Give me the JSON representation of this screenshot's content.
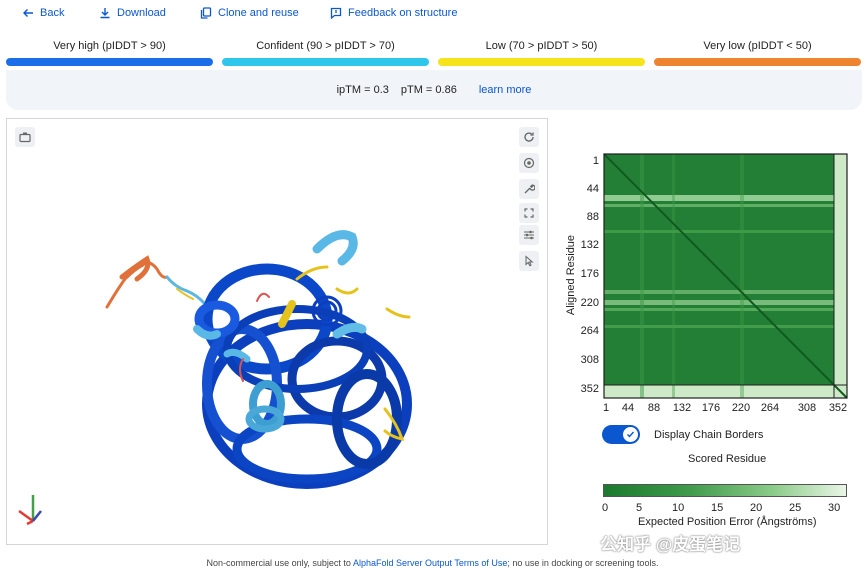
{
  "toolbar": {
    "back_label": "Back",
    "download_label": "Download",
    "clone_label": "Clone and reuse",
    "feedback_label": "Feedback on structure"
  },
  "legend": [
    {
      "label": "Very high (pIDDT > 90)",
      "color": "#1a6fe8"
    },
    {
      "label": "Confident (90 > pIDDT > 70)",
      "color": "#2fc6ec"
    },
    {
      "label": "Low (70 > pIDDT > 50)",
      "color": "#f5e41b"
    },
    {
      "label": "Very low (pIDDT < 50)",
      "color": "#ef8430"
    }
  ],
  "metrics": {
    "iptm": "ipTM = 0.3",
    "ptm": "pTM = 0.86",
    "learn_more": "learn more"
  },
  "pae": {
    "y_axis_label": "Aligned Residue",
    "x_axis_label": "Scored Residue",
    "ticks": [
      "1",
      "44",
      "88",
      "132",
      "176",
      "220",
      "264",
      "308",
      "352"
    ],
    "toggle_label": "Display Chain Borders",
    "toggle_on": true,
    "colorbar_label": "Expected Position Error (Ångströms)",
    "colorbar_ticks": [
      "0",
      "5",
      "10",
      "15",
      "20",
      "25",
      "30"
    ]
  },
  "footer": {
    "text_before": "Non-commercial use only, subject to ",
    "link": "AlphaFold Server Output Terms of Use",
    "text_after": "; no use in docking or screening tools."
  },
  "watermark": "公知乎 @皮蛋笔记"
}
